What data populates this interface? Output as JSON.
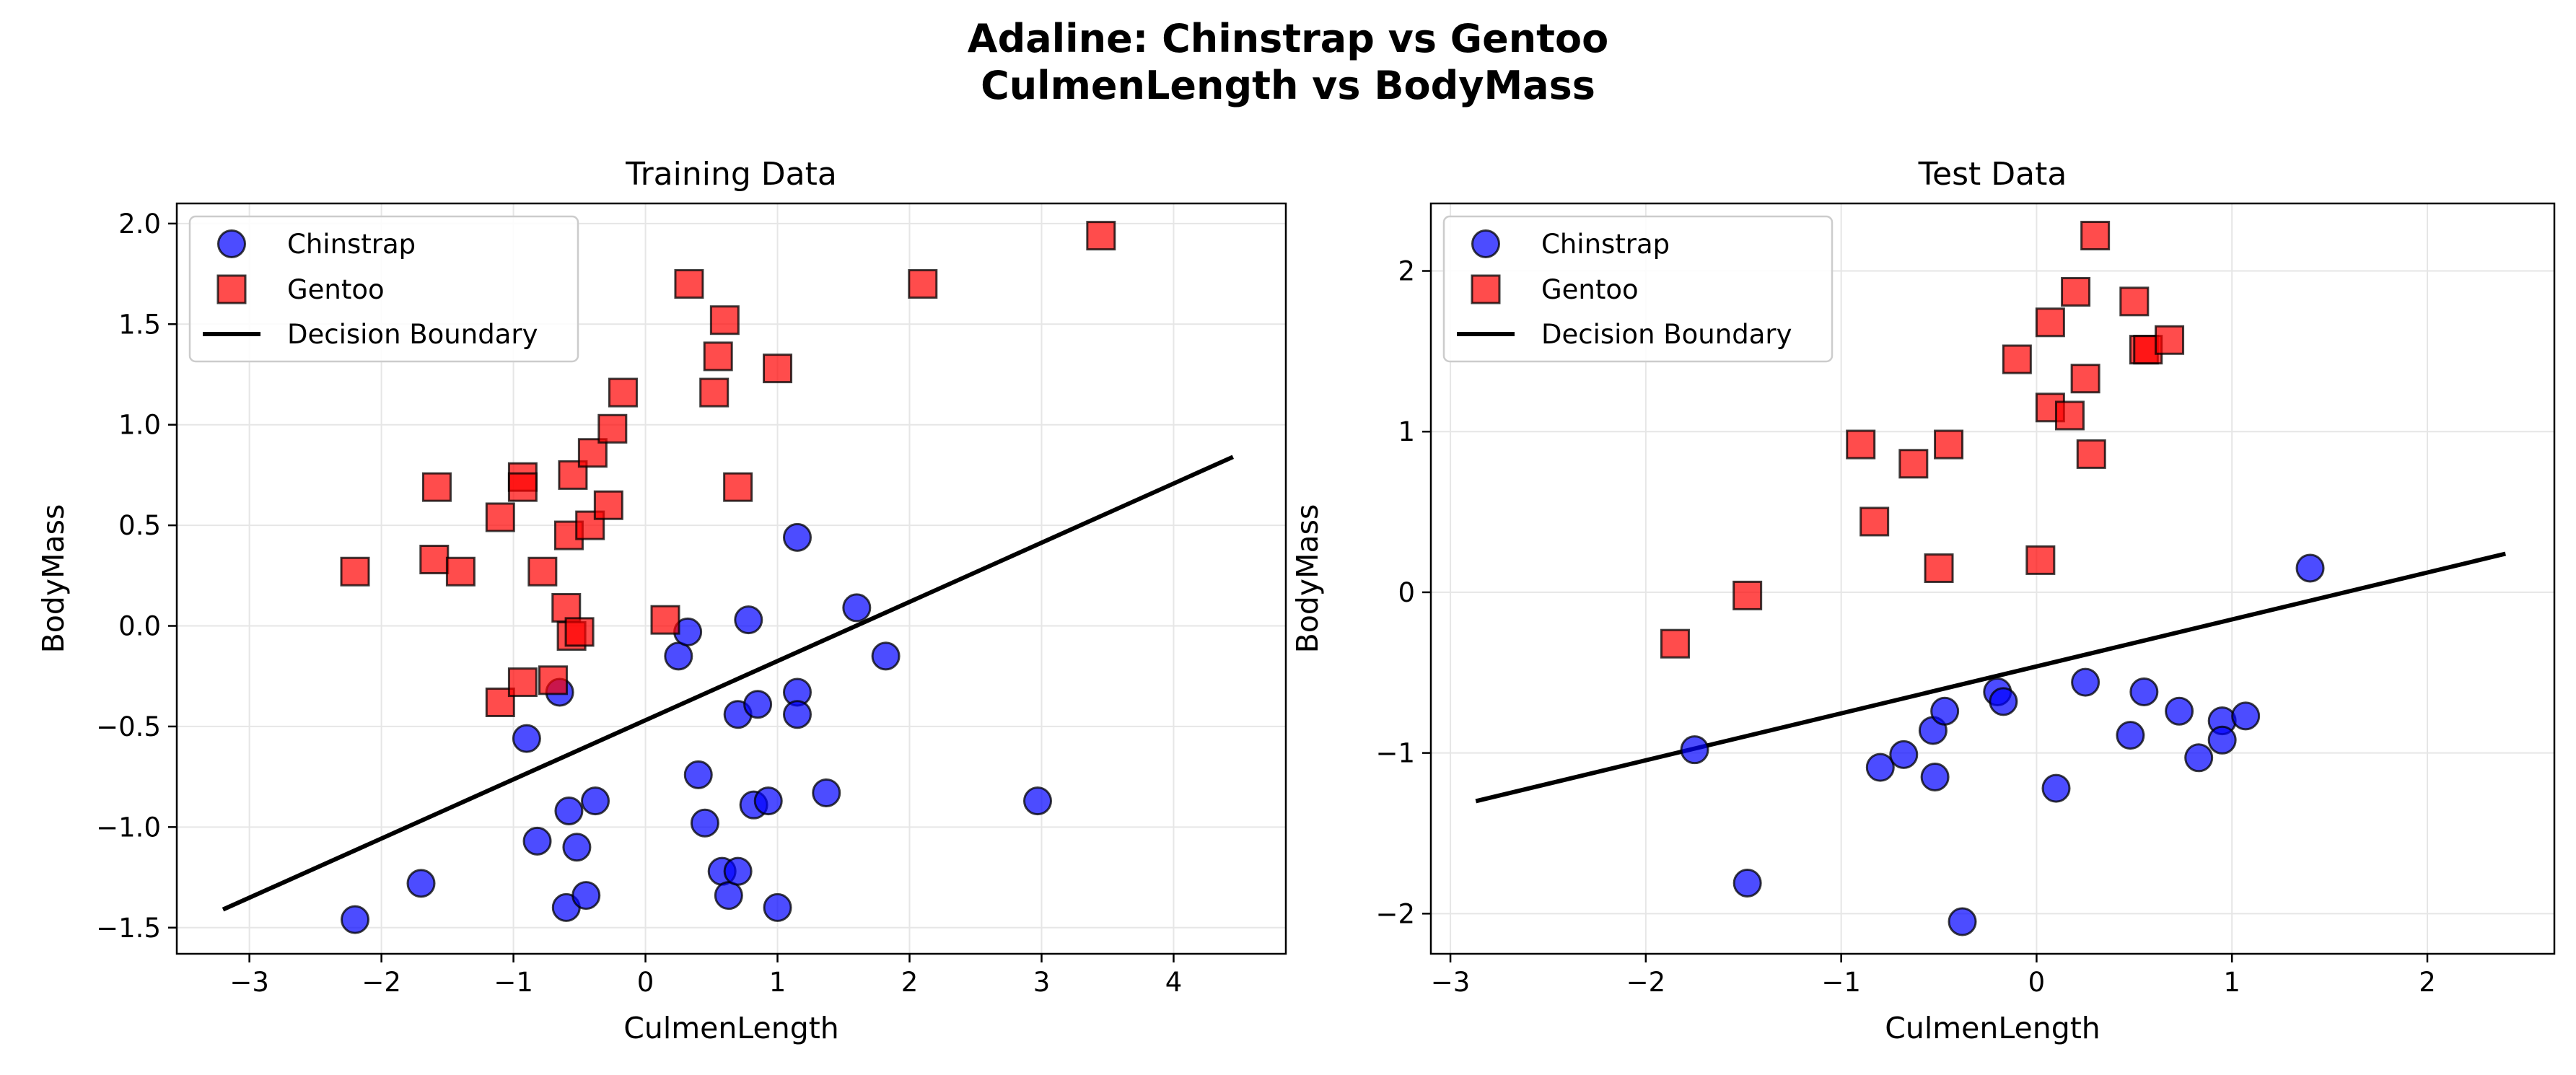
{
  "figure": {
    "title_line1": "Adaline: Chinstrap vs Gentoo",
    "title_line2": "CulmenLength vs BodyMass"
  },
  "colors": {
    "chinstrap": "#0000ff",
    "gentoo": "#ff0000",
    "boundary": "#000000",
    "grid": "#e6e6e6"
  },
  "chart_data": [
    {
      "type": "scatter",
      "title": "Training Data",
      "xlabel": "CulmenLength",
      "ylabel": "BodyMass",
      "xlim": [
        -3.55,
        4.85
      ],
      "ylim": [
        -1.63,
        2.1
      ],
      "xticks": [
        -3,
        -2,
        -1,
        0,
        1,
        2,
        3,
        4
      ],
      "xtick_labels": [
        "−3",
        "−2",
        "−1",
        "0",
        "1",
        "2",
        "3",
        "4"
      ],
      "yticks": [
        -1.5,
        -1.0,
        -0.5,
        0.0,
        0.5,
        1.0,
        1.5,
        2.0
      ],
      "ytick_labels": [
        "−1.5",
        "−1.0",
        "−0.5",
        "0.0",
        "0.5",
        "1.0",
        "1.5",
        "2.0"
      ],
      "grid": true,
      "legend_position": "upper-left",
      "series": [
        {
          "name": "Chinstrap",
          "marker": "circle",
          "points": [
            [
              -2.2,
              -1.46
            ],
            [
              -1.7,
              -1.28
            ],
            [
              -0.9,
              -0.56
            ],
            [
              -0.82,
              -1.07
            ],
            [
              -0.65,
              -0.33
            ],
            [
              -0.6,
              -1.4
            ],
            [
              -0.58,
              -0.92
            ],
            [
              -0.52,
              -1.1
            ],
            [
              -0.45,
              -1.34
            ],
            [
              -0.38,
              -0.87
            ],
            [
              0.25,
              -0.15
            ],
            [
              0.32,
              -0.03
            ],
            [
              0.4,
              -0.74
            ],
            [
              0.45,
              -0.98
            ],
            [
              0.58,
              -1.22
            ],
            [
              0.63,
              -1.34
            ],
            [
              0.7,
              -0.44
            ],
            [
              0.7,
              -1.22
            ],
            [
              0.78,
              0.03
            ],
            [
              0.82,
              -0.89
            ],
            [
              0.85,
              -0.39
            ],
            [
              0.93,
              -0.87
            ],
            [
              1.0,
              -1.4
            ],
            [
              1.15,
              -0.33
            ],
            [
              1.15,
              -0.44
            ],
            [
              1.15,
              0.44
            ],
            [
              1.37,
              -0.83
            ],
            [
              1.6,
              0.09
            ],
            [
              1.82,
              -0.15
            ],
            [
              2.97,
              -0.87
            ]
          ]
        },
        {
          "name": "Gentoo",
          "marker": "square",
          "points": [
            [
              -2.2,
              0.27
            ],
            [
              -1.6,
              0.33
            ],
            [
              -1.58,
              0.69
            ],
            [
              -1.4,
              0.27
            ],
            [
              -1.1,
              0.54
            ],
            [
              -1.1,
              -0.38
            ],
            [
              -0.93,
              -0.28
            ],
            [
              -0.93,
              0.74
            ],
            [
              -0.93,
              0.69
            ],
            [
              -0.78,
              0.27
            ],
            [
              -0.7,
              -0.27
            ],
            [
              -0.6,
              0.09
            ],
            [
              -0.58,
              0.45
            ],
            [
              -0.56,
              -0.05
            ],
            [
              -0.55,
              0.75
            ],
            [
              -0.5,
              -0.03
            ],
            [
              -0.42,
              0.5
            ],
            [
              -0.4,
              0.86
            ],
            [
              -0.28,
              0.6
            ],
            [
              -0.25,
              0.98
            ],
            [
              -0.17,
              1.16
            ],
            [
              0.15,
              0.03
            ],
            [
              0.33,
              1.7
            ],
            [
              0.52,
              1.16
            ],
            [
              0.55,
              1.34
            ],
            [
              0.6,
              1.52
            ],
            [
              0.7,
              0.69
            ],
            [
              1.0,
              1.28
            ],
            [
              2.1,
              1.7
            ],
            [
              3.45,
              1.94
            ]
          ]
        },
        {
          "name": "Decision Boundary",
          "marker": "line",
          "points": [
            [
              -3.2,
              -1.41
            ],
            [
              4.45,
              0.84
            ]
          ]
        }
      ]
    },
    {
      "type": "scatter",
      "title": "Test Data",
      "xlabel": "CulmenLength",
      "ylabel": "BodyMass",
      "xlim": [
        -3.1,
        2.65
      ],
      "ylim": [
        -2.25,
        2.42
      ],
      "xticks": [
        -3,
        -2,
        -1,
        0,
        1,
        2
      ],
      "xtick_labels": [
        "−3",
        "−2",
        "−1",
        "0",
        "1",
        "2"
      ],
      "yticks": [
        -2,
        -1,
        0,
        1,
        2
      ],
      "ytick_labels": [
        "−2",
        "−1",
        "0",
        "1",
        "2"
      ],
      "grid": true,
      "legend_position": "upper-left",
      "series": [
        {
          "name": "Chinstrap",
          "marker": "circle",
          "points": [
            [
              -1.75,
              -0.98
            ],
            [
              -1.48,
              -1.81
            ],
            [
              -0.8,
              -1.09
            ],
            [
              -0.68,
              -1.01
            ],
            [
              -0.53,
              -0.86
            ],
            [
              -0.52,
              -1.15
            ],
            [
              -0.47,
              -0.74
            ],
            [
              -0.2,
              -0.62
            ],
            [
              -0.17,
              -0.68
            ],
            [
              -0.38,
              -2.05
            ],
            [
              0.1,
              -1.22
            ],
            [
              0.25,
              -0.56
            ],
            [
              0.48,
              -0.89
            ],
            [
              0.55,
              -0.62
            ],
            [
              0.73,
              -0.74
            ],
            [
              0.83,
              -1.03
            ],
            [
              0.95,
              -0.8
            ],
            [
              0.95,
              -0.92
            ],
            [
              1.07,
              -0.77
            ],
            [
              1.4,
              0.15
            ]
          ]
        },
        {
          "name": "Gentoo",
          "marker": "square",
          "points": [
            [
              -1.85,
              -0.32
            ],
            [
              -1.48,
              -0.02
            ],
            [
              -0.9,
              0.92
            ],
            [
              -0.83,
              0.44
            ],
            [
              -0.63,
              0.8
            ],
            [
              -0.5,
              0.15
            ],
            [
              -0.45,
              0.92
            ],
            [
              -0.1,
              1.45
            ],
            [
              0.02,
              0.2
            ],
            [
              0.07,
              1.15
            ],
            [
              0.07,
              1.68
            ],
            [
              0.17,
              1.1
            ],
            [
              0.2,
              1.87
            ],
            [
              0.25,
              1.33
            ],
            [
              0.28,
              0.86
            ],
            [
              0.3,
              2.22
            ],
            [
              0.5,
              1.81
            ],
            [
              0.55,
              1.51
            ],
            [
              0.57,
              1.51
            ],
            [
              0.68,
              1.57
            ]
          ]
        },
        {
          "name": "Decision Boundary",
          "marker": "line",
          "points": [
            [
              -2.87,
              -1.3
            ],
            [
              2.4,
              0.24
            ]
          ]
        }
      ]
    }
  ]
}
